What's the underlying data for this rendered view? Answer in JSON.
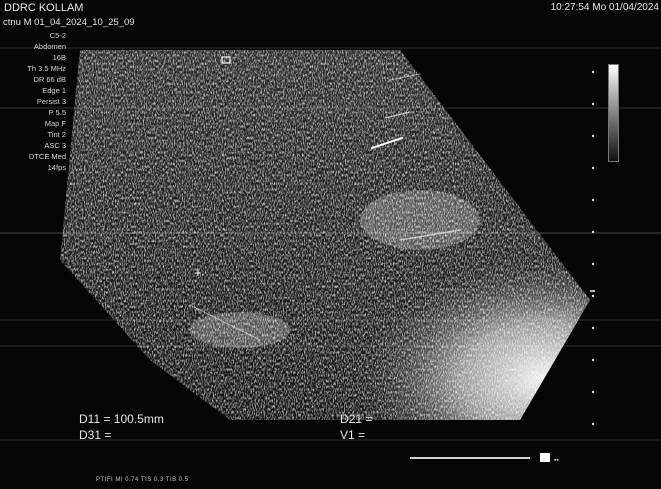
{
  "header": {
    "site": "DDRC KOLLAM",
    "clock": "10:27:54  Mo  01/04/2024",
    "patient": "ctnu    M  01_04_2024_10_25_09"
  },
  "params": [
    "C5-2",
    "Abdomen",
    "16B",
    "Th 3.5 MHz",
    "DR 66 dB",
    "Edge 1",
    "Persist 3",
    "P 5.5",
    "Map F",
    "Tint 2",
    "ASC 3",
    "DTCE Med",
    "14fps"
  ],
  "measurements": {
    "d11": "D11 = 100.5mm",
    "d31": "D31 =",
    "d21": "D21 =",
    "v1": "V1 ="
  },
  "footer": "PTIFI    MI 0.74    TIS 0.3  TIB 0.5",
  "colors": {
    "background": "#050505",
    "text": "#e8e8e8"
  }
}
